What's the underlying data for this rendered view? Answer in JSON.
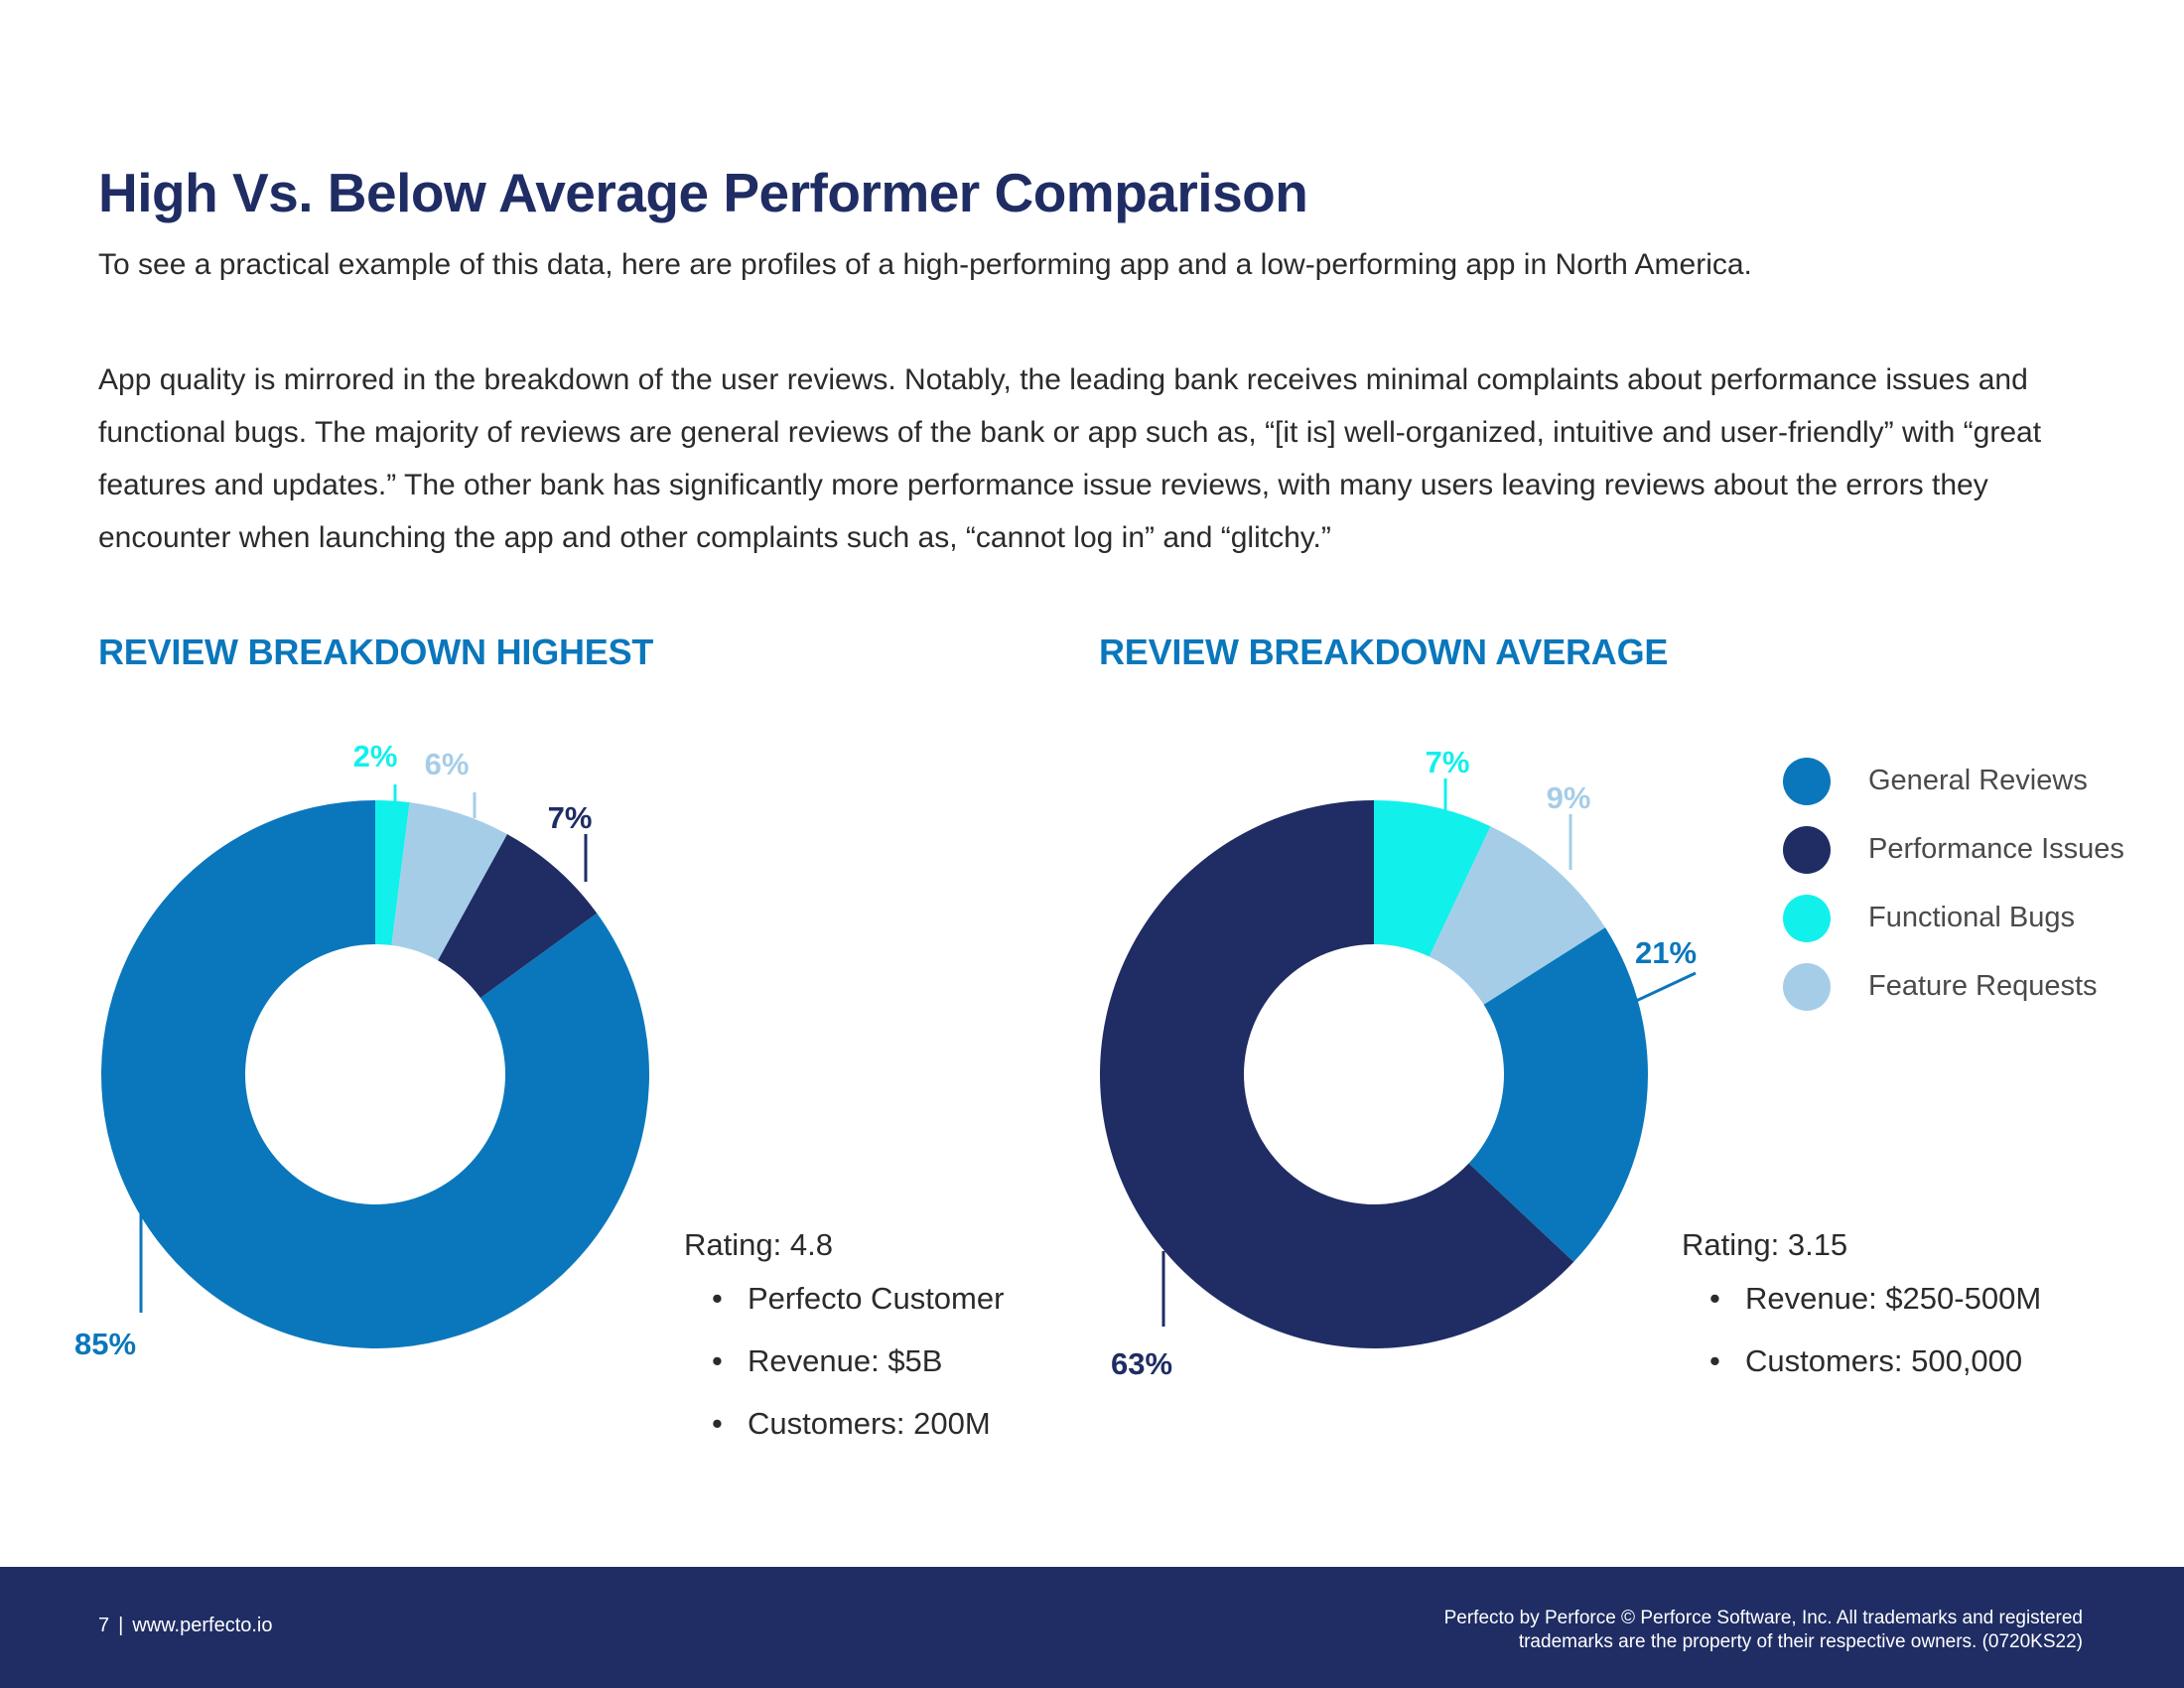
{
  "page": {
    "title": "High Vs. Below Average Performer Comparison",
    "subtitle": "To see a practical example of this data, here are profiles of a high-performing app and a low-performing app in North America.",
    "body": "App quality is mirrored in the breakdown of the user reviews. Notably, the leading bank receives minimal complaints about performance issues and functional bugs. The majority of reviews are general reviews of the bank or app such as, “[it is] well-organized, intuitive and user-friendly” with “great features and updates.”  The other bank has significantly more performance issue reviews, with many users leaving reviews about the errors they encounter when launching the app and other complaints such as, “cannot log in” and “glitchy.”"
  },
  "colors": {
    "General Reviews": "#0a77bc",
    "Performance Issues": "#1f2d64",
    "Functional Bugs": "#12f0ec",
    "Feature Requests": "#a6cde8"
  },
  "legend": {
    "items": [
      {
        "label": "General Reviews",
        "color": "#0a77bc"
      },
      {
        "label": "Performance Issues",
        "color": "#1f2d64"
      },
      {
        "label": "Functional Bugs",
        "color": "#12f0ec"
      },
      {
        "label": "Feature Requests",
        "color": "#a6cde8"
      }
    ]
  },
  "chart_data": [
    {
      "type": "pie",
      "title": "REVIEW BREAKDOWN HIGHEST",
      "donut": true,
      "slices": [
        {
          "label": "Functional Bugs",
          "value": 2,
          "display": "2%"
        },
        {
          "label": "Feature Requests",
          "value": 6,
          "display": "6%"
        },
        {
          "label": "Performance Issues",
          "value": 7,
          "display": "7%"
        },
        {
          "label": "General Reviews",
          "value": 85,
          "display": "85%"
        }
      ]
    },
    {
      "type": "pie",
      "title": "REVIEW BREAKDOWN AVERAGE",
      "donut": true,
      "slices": [
        {
          "label": "Functional Bugs",
          "value": 7,
          "display": "7%"
        },
        {
          "label": "Feature Requests",
          "value": 9,
          "display": "9%"
        },
        {
          "label": "General Reviews",
          "value": 21,
          "display": "21%"
        },
        {
          "label": "Performance Issues",
          "value": 63,
          "display": "63%"
        }
      ]
    }
  ],
  "info": {
    "left": {
      "rating": "Rating: 4.8",
      "items": [
        "Perfecto Customer",
        "Revenue: $5B",
        "Customers: 200M"
      ]
    },
    "right": {
      "rating": "Rating: 3.15",
      "items": [
        "Revenue: $250-500M",
        "Customers: 500,000"
      ]
    }
  },
  "footer": {
    "page_number": "7",
    "separator": "|",
    "url": "www.perfecto.io",
    "copyright_line1": "Perfecto by Perforce © Perforce Software, Inc. All trademarks and registered",
    "copyright_line2": "trademarks are the property of their respective owners. (0720KS22)"
  }
}
